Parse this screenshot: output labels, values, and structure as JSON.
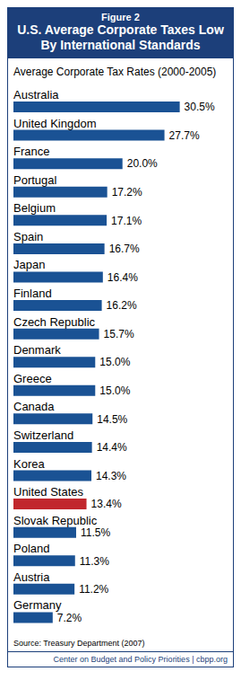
{
  "chart_data": {
    "type": "bar",
    "orientation": "horizontal",
    "figure_label": "Figure 2",
    "title": "U.S. Average Corporate Taxes Low By International Standards",
    "subtitle": "Average Corporate Tax Rates (2000-2005)",
    "categories": [
      "Australia",
      "United Kingdom",
      "France",
      "Portugal",
      "Belgium",
      "Spain",
      "Japan",
      "Finland",
      "Czech Republic",
      "Denmark",
      "Greece",
      "Canada",
      "Switzerland",
      "Korea",
      "United States",
      "Slovak Republic",
      "Poland",
      "Austria",
      "Germany"
    ],
    "values": [
      30.5,
      27.7,
      20.0,
      17.2,
      17.1,
      16.7,
      16.4,
      16.2,
      15.7,
      15.0,
      15.0,
      14.5,
      14.4,
      14.3,
      13.4,
      11.5,
      11.3,
      11.2,
      7.2
    ],
    "value_labels": [
      "30.5%",
      "27.7%",
      "20.0%",
      "17.2%",
      "17.1%",
      "16.7%",
      "16.4%",
      "16.2%",
      "15.7%",
      "15.0%",
      "15.0%",
      "14.5%",
      "14.4%",
      "14.3%",
      "13.4%",
      "11.5%",
      "11.3%",
      "11.2%",
      "7.2%"
    ],
    "color": "#1a5294",
    "colors": [
      "#1a5294",
      "#1a5294",
      "#1a5294",
      "#1a5294",
      "#1a5294",
      "#1a5294",
      "#1a5294",
      "#1a5294",
      "#1a5294",
      "#1a5294",
      "#1a5294",
      "#1a5294",
      "#1a5294",
      "#1a5294",
      "#c1272d",
      "#1a5294",
      "#1a5294",
      "#1a5294",
      "#1a5294"
    ],
    "xlim": [
      0,
      35
    ],
    "data_labels": true,
    "tick_labels": false,
    "grid": false,
    "source": "Source: Treasury Department (2007)",
    "footer": "Center on Budget and Policy Priorities | cbpp.org"
  }
}
